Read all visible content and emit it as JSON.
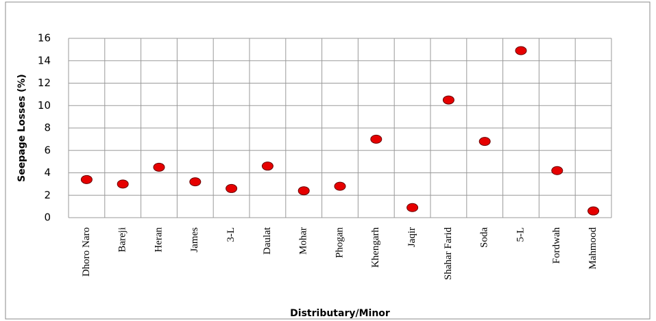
{
  "chart_data": {
    "type": "scatter",
    "x_label": "Distributary/Minor",
    "y_label": "Seepage Losses (%)",
    "categories": [
      "Dhoro Naro",
      "Bareji",
      "Heran",
      "James",
      "3-L",
      "Daulat",
      "Mohar",
      "Phogan",
      "Khengarh",
      "Jaqir",
      "Shahar Farid",
      "Soda",
      "5-L",
      "Fordwah",
      "Mahmood"
    ],
    "values": [
      3.4,
      3.0,
      4.5,
      3.2,
      2.6,
      4.6,
      2.4,
      2.8,
      7.0,
      0.9,
      10.5,
      6.8,
      14.9,
      4.2,
      0.6
    ],
    "color": "#e60000",
    "ylim": [
      0,
      16
    ],
    "yticks": [
      0,
      2,
      4,
      6,
      8,
      10,
      12,
      14,
      16
    ],
    "grid": true
  }
}
